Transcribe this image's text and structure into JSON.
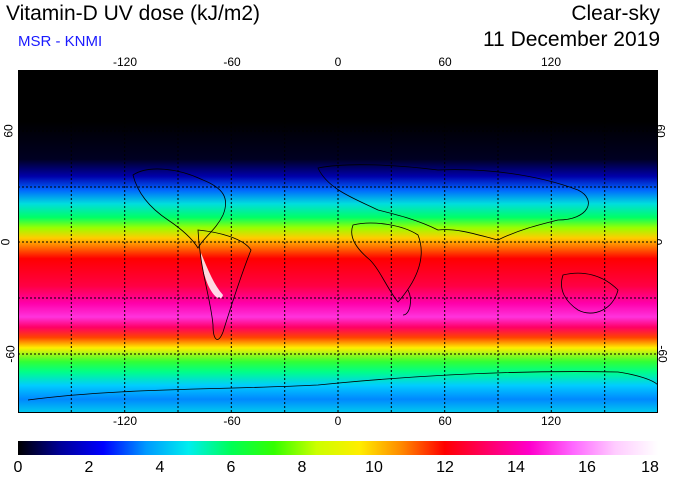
{
  "header": {
    "title": "Vitamin-D UV dose (kJ/m2)",
    "subtitle": "MSR - KNMI",
    "product": "Clear-sky",
    "date": "11 December 2019"
  },
  "map": {
    "lon_ticks": [
      "-120",
      "-60",
      "0",
      "60",
      "120"
    ],
    "lat_ticks": [
      "60",
      "0",
      "-60"
    ],
    "coastline_color": "#000000",
    "grid_style": "dashed"
  },
  "colorbar": {
    "labels": [
      "0",
      "2",
      "4",
      "6",
      "8",
      "10",
      "12",
      "14",
      "16",
      "18"
    ],
    "range": [
      0,
      18
    ],
    "colors": [
      "#000000",
      "#000099",
      "#0000ff",
      "#0099ff",
      "#00eeee",
      "#00ff55",
      "#33ff00",
      "#ccff00",
      "#ffee00",
      "#ff8800",
      "#ff0000",
      "#ff0066",
      "#ff00cc",
      "#ff66ff",
      "#ffccff",
      "#ffffff"
    ]
  }
}
